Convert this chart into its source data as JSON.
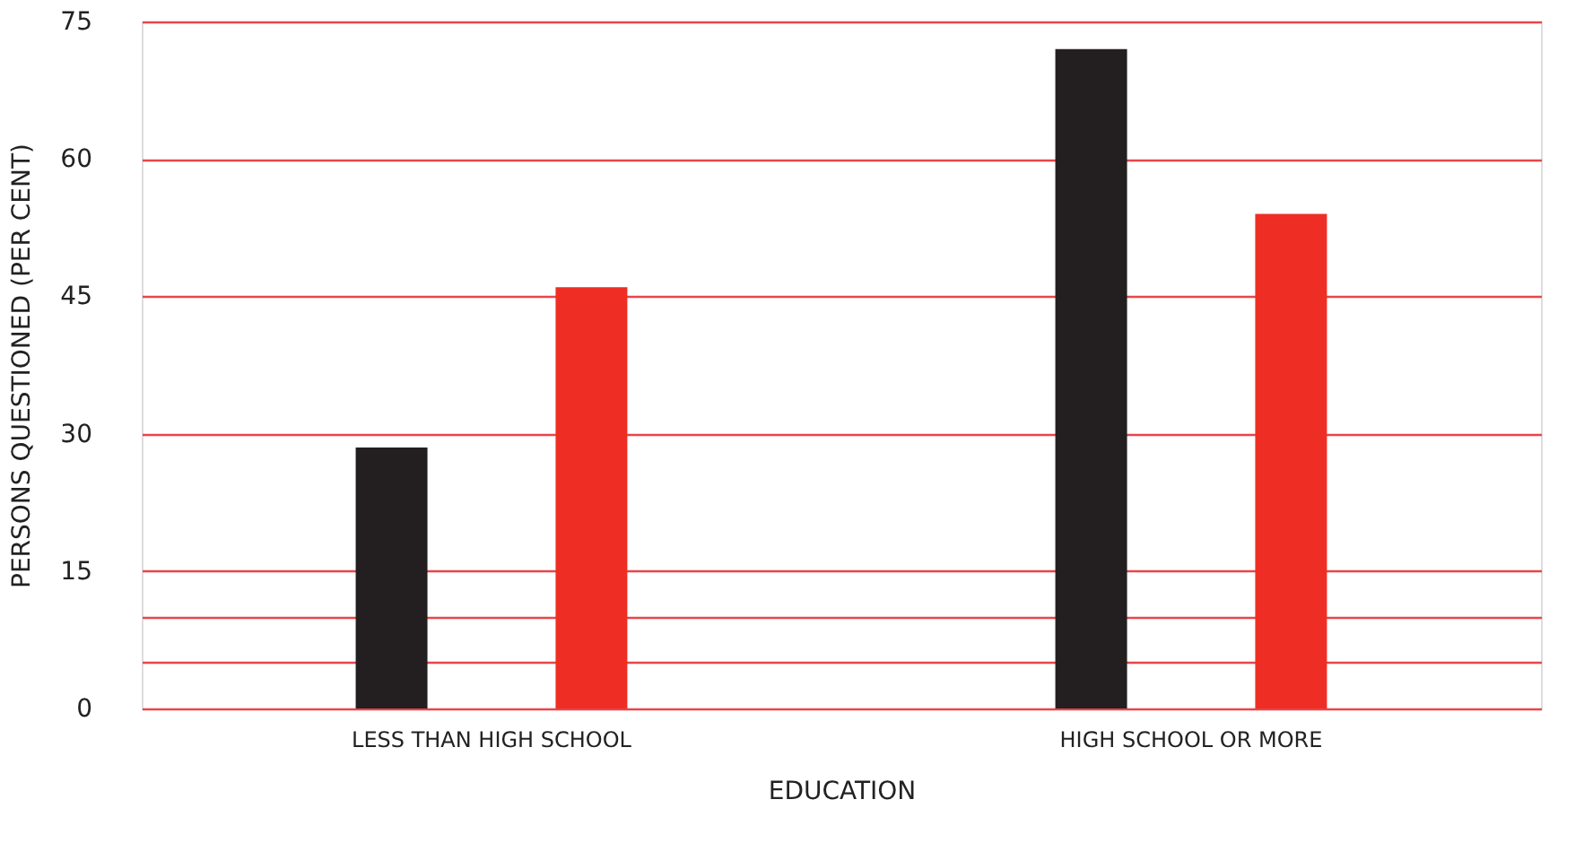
{
  "chart_data": {
    "type": "bar",
    "xlabel": "EDUCATION",
    "ylabel": "PERSONS QUESTIONED (PER CENT)",
    "categories": [
      "LESS THAN HIGH SCHOOL",
      "HIGH SCHOOL OR MORE"
    ],
    "series": [
      {
        "color": "#231f20",
        "values": [
          28.5,
          72
        ]
      },
      {
        "color": "#ee2e24",
        "values": [
          46,
          54
        ]
      }
    ],
    "ylim": [
      0,
      75
    ],
    "yticks": [
      0,
      {
        "value": 5,
        "label": null
      },
      {
        "value": 10,
        "label": null
      },
      15,
      30,
      45,
      60,
      75
    ],
    "grid": "y"
  }
}
